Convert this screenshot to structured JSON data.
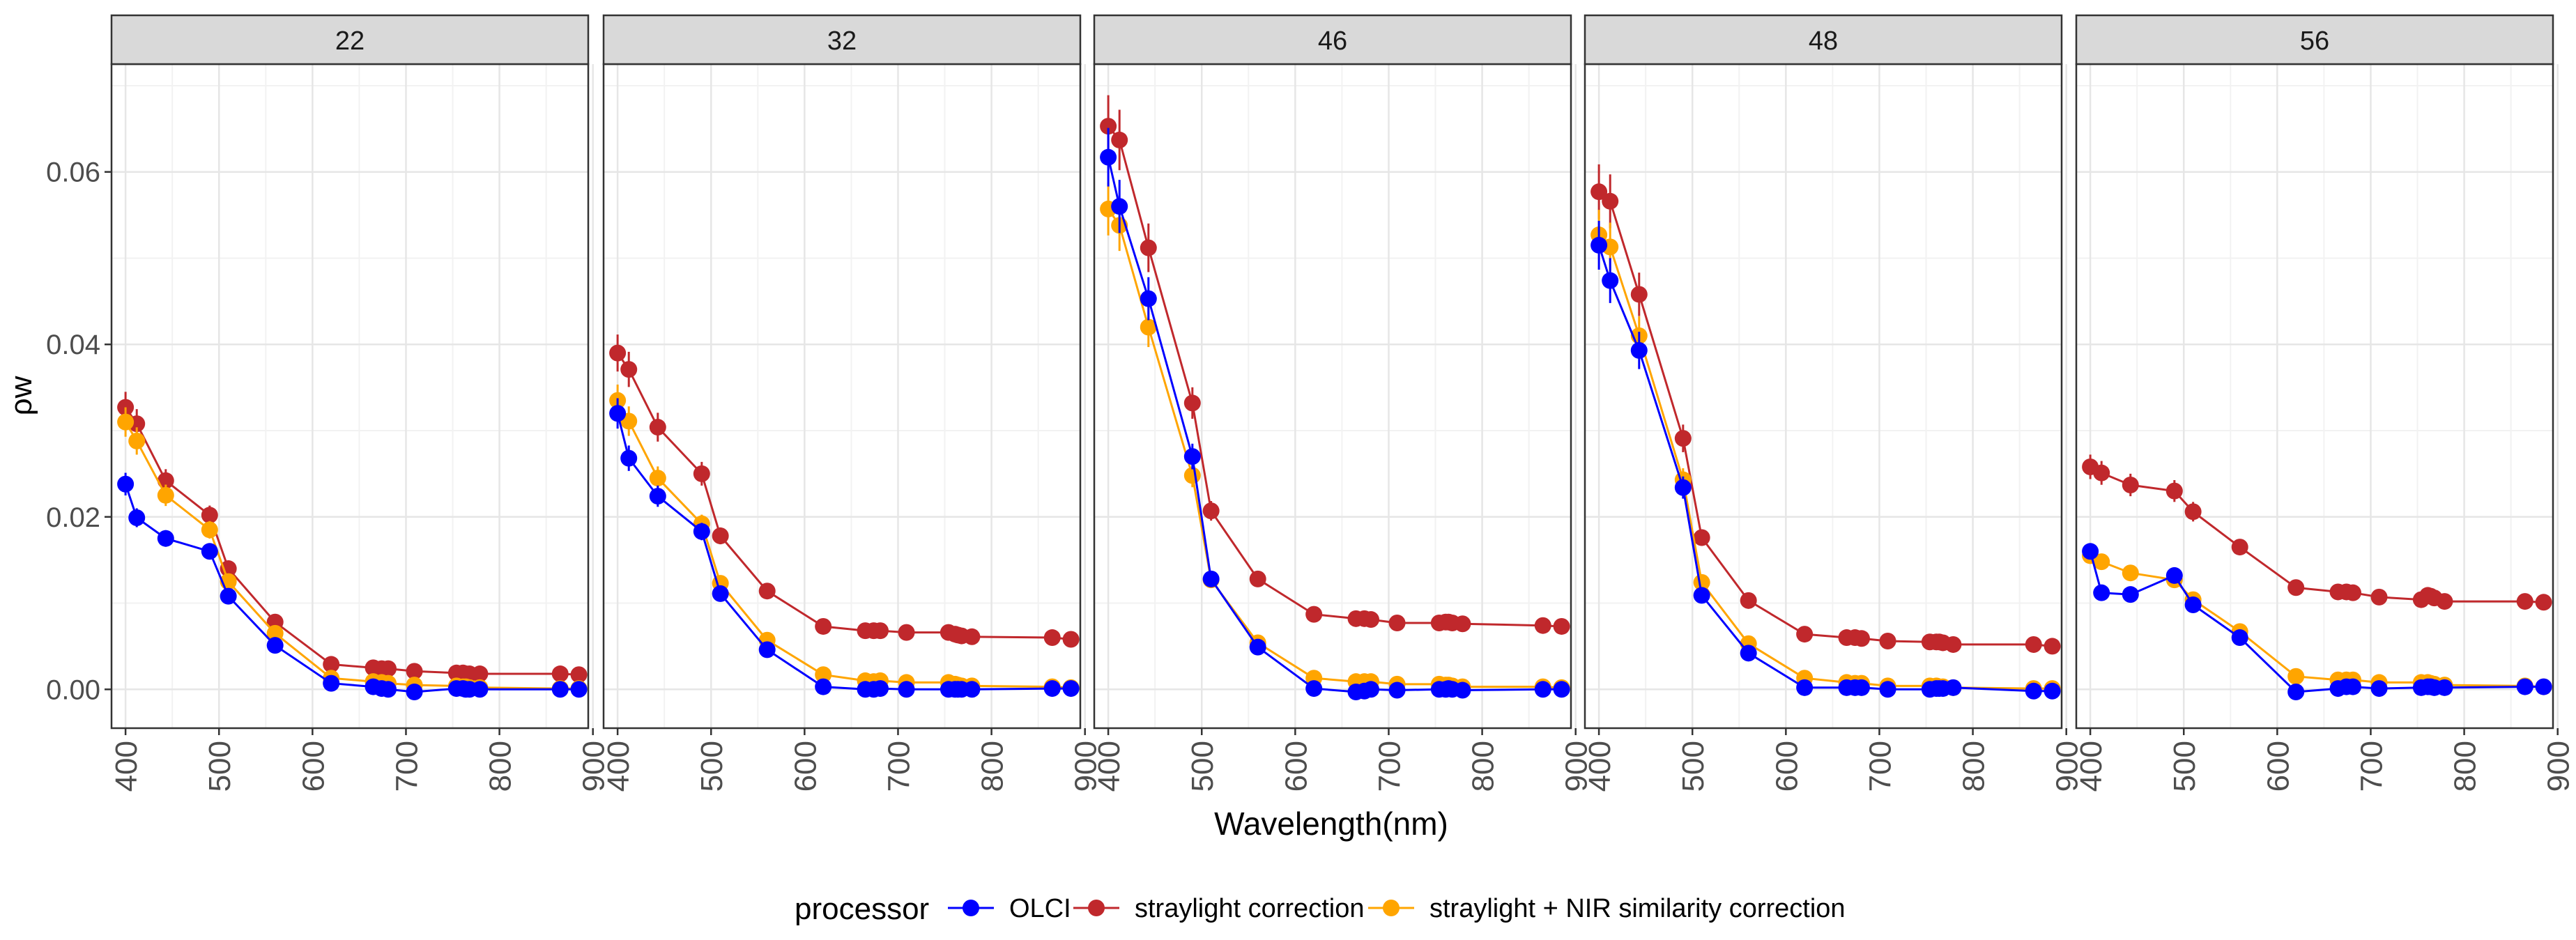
{
  "chart_data": {
    "type": "line",
    "facets": [
      "22",
      "32",
      "46",
      "48",
      "56"
    ],
    "xlabel": "Wavelength(nm)",
    "ylabel": "ρw",
    "xlim": [
      385,
      895
    ],
    "ylim": [
      -0.0045,
      0.0725
    ],
    "xticks": [
      400,
      500,
      600,
      700,
      800,
      900
    ],
    "yticks": [
      0.0,
      0.02,
      0.04,
      0.06
    ],
    "ytick_labels": [
      "0.00",
      "0.02",
      "0.04",
      "0.06"
    ],
    "legend": {
      "title": "processor",
      "position": "bottom",
      "entries": [
        "OLCI",
        "straylight correction",
        "straylight + NIR similarity correction"
      ]
    },
    "colors": {
      "OLCI": "#0000FF",
      "straylight correction": "#C0282C",
      "straylight + NIR similarity correction": "#FFA500"
    },
    "x": [
      400,
      412,
      443,
      490,
      510,
      560,
      620,
      665,
      674,
      681,
      709,
      754,
      761,
      764,
      768,
      779,
      865,
      885
    ],
    "series": [
      {
        "facet": "22",
        "name": "OLCI",
        "values": [
          0.0238,
          0.0199,
          0.0175,
          0.016,
          0.0108,
          0.0051,
          0.0007,
          0.0003,
          0.0001,
          0.0,
          -0.0003,
          0.0001,
          0.0001,
          0.0,
          0.0,
          0.0,
          0.0,
          0.0
        ]
      },
      {
        "facet": "22",
        "name": "straylight correction",
        "values": [
          0.0327,
          0.0308,
          0.0242,
          0.0202,
          0.014,
          0.0078,
          0.0029,
          0.0025,
          0.0024,
          0.0024,
          0.0021,
          0.0019,
          0.0019,
          0.0018,
          0.0018,
          0.0018,
          0.0018,
          0.0017
        ]
      },
      {
        "facet": "22",
        "name": "straylight + NIR similarity correction",
        "values": [
          0.031,
          0.0288,
          0.0225,
          0.0185,
          0.0125,
          0.0065,
          0.0013,
          0.0009,
          0.0008,
          0.0007,
          0.0005,
          0.0004,
          0.0003,
          0.0003,
          0.0002,
          0.0002,
          0.0001,
          0.0001
        ]
      },
      {
        "facet": "32",
        "name": "OLCI",
        "values": [
          0.032,
          0.0268,
          0.0224,
          0.0183,
          0.0111,
          0.0046,
          0.0003,
          0.0,
          0.0,
          0.0001,
          0.0,
          0.0,
          0.0,
          0.0,
          0.0,
          0.0,
          0.0001,
          0.0001
        ]
      },
      {
        "facet": "32",
        "name": "straylight correction",
        "values": [
          0.039,
          0.0371,
          0.0304,
          0.025,
          0.0178,
          0.0114,
          0.0073,
          0.0068,
          0.0068,
          0.0068,
          0.0066,
          0.0066,
          0.0064,
          0.0063,
          0.0062,
          0.0061,
          0.006,
          0.0058
        ]
      },
      {
        "facet": "32",
        "name": "straylight + NIR similarity correction",
        "values": [
          0.0335,
          0.0311,
          0.0245,
          0.0192,
          0.0123,
          0.0057,
          0.0017,
          0.001,
          0.0009,
          0.001,
          0.0008,
          0.0008,
          0.0006,
          0.0005,
          0.0004,
          0.0004,
          0.0003,
          0.0002
        ]
      },
      {
        "facet": "46",
        "name": "OLCI",
        "values": [
          0.0617,
          0.056,
          0.0453,
          0.027,
          0.0128,
          0.0049,
          0.0001,
          -0.0003,
          -0.0002,
          0.0,
          -0.0001,
          0.0,
          0.0,
          0.0001,
          0.0,
          -0.0001,
          0.0,
          0.0
        ]
      },
      {
        "facet": "46",
        "name": "straylight correction",
        "values": [
          0.0653,
          0.0637,
          0.0512,
          0.0332,
          0.0207,
          0.0128,
          0.0087,
          0.0082,
          0.0082,
          0.0081,
          0.0077,
          0.0077,
          0.0078,
          0.0078,
          0.0077,
          0.0076,
          0.0074,
          0.0073
        ]
      },
      {
        "facet": "46",
        "name": "straylight + NIR similarity correction",
        "values": [
          0.0557,
          0.0538,
          0.042,
          0.0248,
          0.0127,
          0.0054,
          0.0013,
          0.0009,
          0.0009,
          0.0009,
          0.0006,
          0.0006,
          0.0005,
          0.0005,
          0.0004,
          0.0003,
          0.0003,
          0.0002
        ]
      },
      {
        "facet": "48",
        "name": "OLCI",
        "values": [
          0.0515,
          0.0474,
          0.0393,
          0.0234,
          0.0109,
          0.0042,
          0.0002,
          0.0002,
          0.0002,
          0.0002,
          0.0,
          0.0,
          0.0001,
          0.0001,
          0.0001,
          0.0002,
          -0.0002,
          -0.0002
        ]
      },
      {
        "facet": "48",
        "name": "straylight correction",
        "values": [
          0.0577,
          0.0566,
          0.0458,
          0.0291,
          0.0176,
          0.0103,
          0.0064,
          0.006,
          0.006,
          0.0059,
          0.0056,
          0.0055,
          0.0055,
          0.0055,
          0.0054,
          0.0052,
          0.0052,
          0.005
        ]
      },
      {
        "facet": "48",
        "name": "straylight + NIR similarity correction",
        "values": [
          0.0527,
          0.0513,
          0.041,
          0.0243,
          0.0124,
          0.0053,
          0.0013,
          0.0008,
          0.0007,
          0.0007,
          0.0004,
          0.0004,
          0.0004,
          0.0003,
          0.0003,
          0.0002,
          0.0001,
          0.0001
        ]
      },
      {
        "facet": "56",
        "name": "OLCI",
        "values": [
          0.016,
          0.0112,
          0.011,
          0.0132,
          0.0098,
          0.006,
          -0.0003,
          0.0001,
          0.0003,
          0.0003,
          0.0001,
          0.0002,
          0.0003,
          0.0003,
          0.0002,
          0.0002,
          0.0003,
          0.0003
        ]
      },
      {
        "facet": "56",
        "name": "straylight correction",
        "values": [
          0.0258,
          0.0251,
          0.0237,
          0.023,
          0.0206,
          0.0165,
          0.0118,
          0.0113,
          0.0113,
          0.0112,
          0.0107,
          0.0104,
          0.0109,
          0.0108,
          0.0106,
          0.0102,
          0.0102,
          0.0101
        ]
      },
      {
        "facet": "56",
        "name": "straylight + NIR similarity correction",
        "values": [
          0.0155,
          0.0148,
          0.0135,
          0.0127,
          0.0104,
          0.0067,
          0.0015,
          0.0011,
          0.0011,
          0.0011,
          0.0008,
          0.0008,
          0.0008,
          0.0007,
          0.0006,
          0.0005,
          0.0004,
          0.0003
        ]
      }
    ]
  }
}
